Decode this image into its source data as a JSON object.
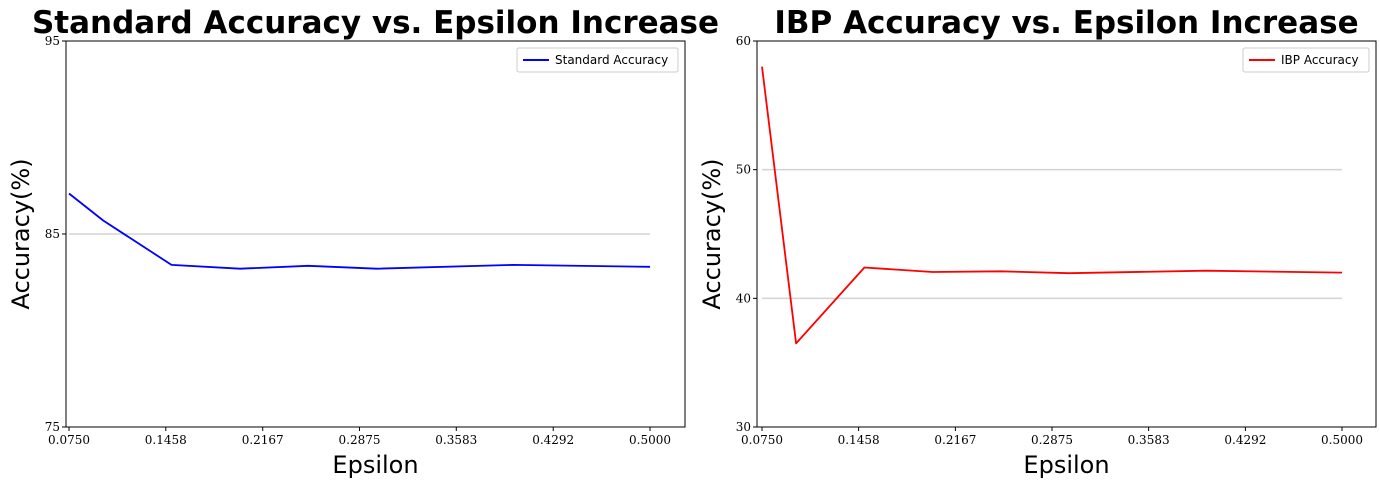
{
  "chart_data": [
    {
      "type": "line",
      "title": "Standard Accuracy vs. Epsilon Increase",
      "xlabel": "Epsilon",
      "ylabel": "Accuracy(%)",
      "xlim": [
        0.075,
        0.5
      ],
      "ylim": [
        75,
        95
      ],
      "xticks": [
        "0.0750",
        "0.1458",
        "0.2167",
        "0.2875",
        "0.3583",
        "0.4292",
        "0.5000"
      ],
      "yticks": [
        "75",
        "85",
        "95"
      ],
      "grid_lines_y": [
        85
      ],
      "legend_position": "upper-right",
      "series": [
        {
          "name": "Standard Accuracy",
          "color": "#0000ff",
          "x": [
            0.075,
            0.1,
            0.15,
            0.2,
            0.25,
            0.3,
            0.4,
            0.5
          ],
          "y": [
            87.1,
            85.7,
            83.4,
            83.2,
            83.35,
            83.2,
            83.4,
            83.3
          ]
        }
      ]
    },
    {
      "type": "line",
      "title": "IBP Accuracy vs. Epsilon Increase",
      "xlabel": "Epsilon",
      "ylabel": "Accuracy(%)",
      "xlim": [
        0.075,
        0.5
      ],
      "ylim": [
        30,
        60
      ],
      "xticks": [
        "0.0750",
        "0.1458",
        "0.2167",
        "0.2875",
        "0.3583",
        "0.4292",
        "0.5000"
      ],
      "yticks": [
        "30",
        "40",
        "50",
        "60"
      ],
      "grid_lines_y": [
        40,
        50
      ],
      "legend_position": "upper-right",
      "series": [
        {
          "name": "IBP Accuracy",
          "color": "#ff0000",
          "x": [
            0.075,
            0.1,
            0.15,
            0.2,
            0.25,
            0.3,
            0.4,
            0.5
          ],
          "y": [
            58.0,
            36.5,
            42.4,
            42.05,
            42.1,
            41.95,
            42.15,
            42.0
          ]
        }
      ]
    }
  ]
}
